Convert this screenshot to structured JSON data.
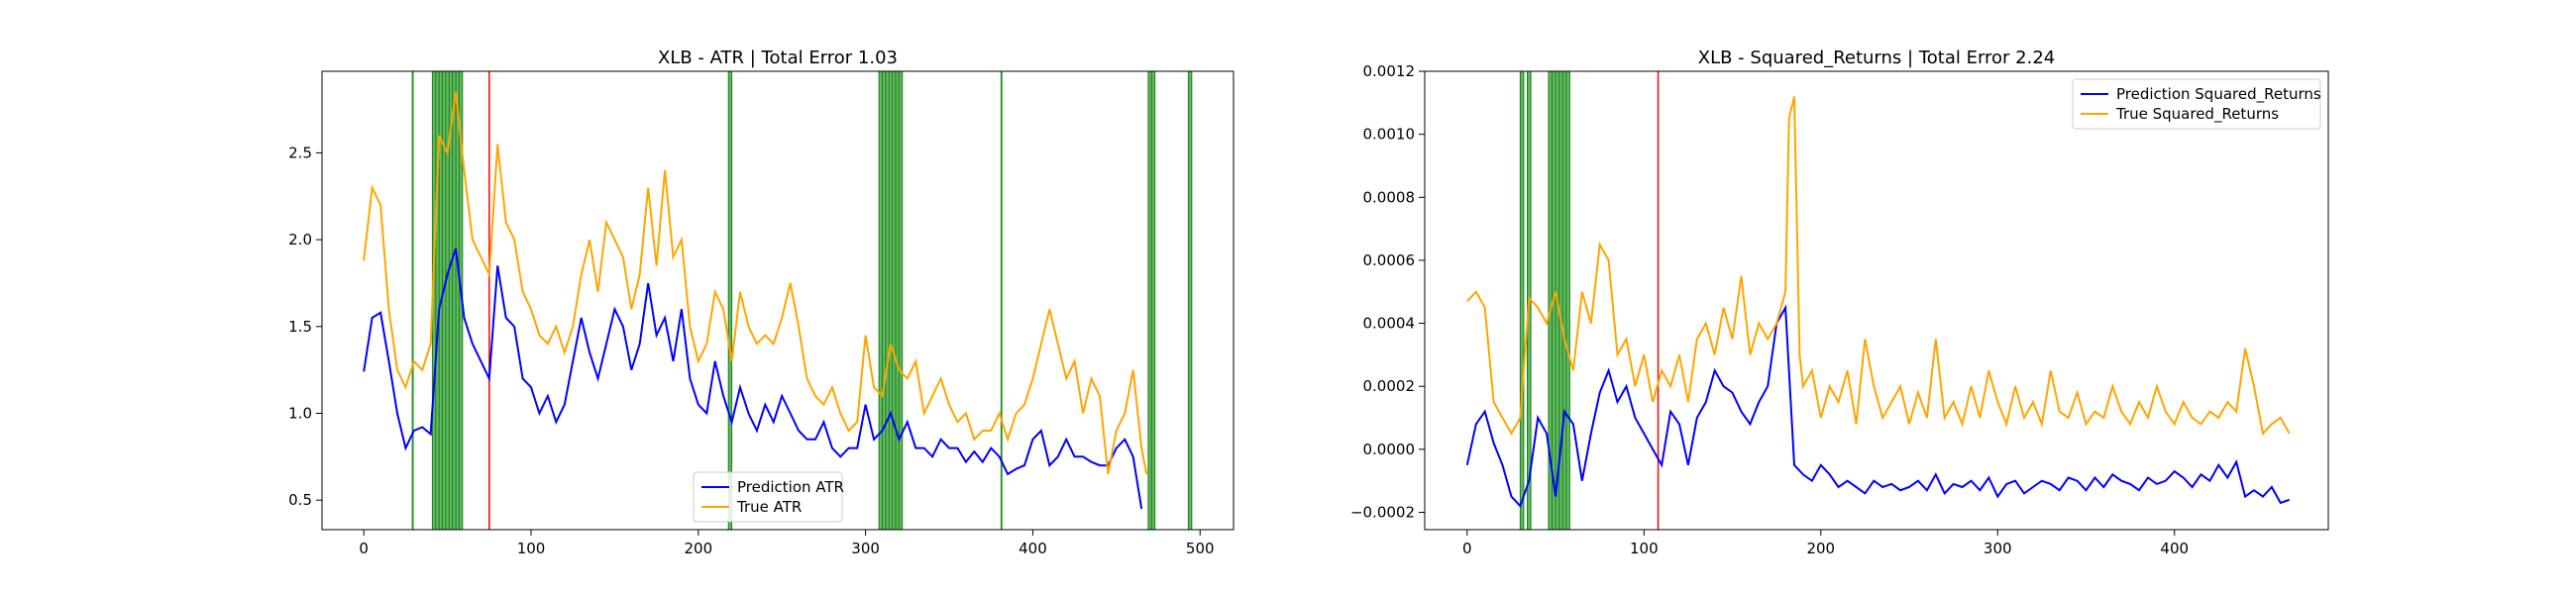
{
  "chart_data": [
    {
      "type": "line",
      "title": "XLB - ATR | Total Error 1.03",
      "xlim": [
        -25,
        520
      ],
      "ylim": [
        0.33,
        2.97
      ],
      "xticks": [
        0,
        100,
        200,
        300,
        400,
        500
      ],
      "yticks": [
        0.5,
        1.0,
        1.5,
        2.0,
        2.5
      ],
      "ytick_format": "1",
      "legend_position": "lower-center",
      "green_regions": [
        [
          29,
          30
        ],
        [
          41,
          59
        ],
        [
          218,
          220
        ],
        [
          308,
          322
        ],
        [
          381,
          382
        ],
        [
          469,
          473
        ],
        [
          493,
          495
        ]
      ],
      "red_lines": [
        75
      ],
      "series": [
        {
          "name": "Prediction ATR",
          "color": "#0000ff",
          "x": [
            0,
            5,
            10,
            15,
            20,
            25,
            30,
            35,
            40,
            45,
            50,
            55,
            60,
            65,
            70,
            75,
            80,
            85,
            90,
            95,
            100,
            105,
            110,
            115,
            120,
            125,
            130,
            135,
            140,
            145,
            150,
            155,
            160,
            165,
            170,
            175,
            180,
            185,
            190,
            195,
            200,
            205,
            210,
            215,
            220,
            225,
            230,
            235,
            240,
            245,
            250,
            255,
            260,
            265,
            270,
            275,
            280,
            285,
            290,
            295,
            300,
            305,
            310,
            315,
            320,
            325,
            330,
            335,
            340,
            345,
            350,
            355,
            360,
            365,
            370,
            375,
            380,
            385,
            390,
            395,
            400,
            405,
            410,
            415,
            420,
            425,
            430,
            435,
            440,
            445,
            450,
            455,
            460,
            465
          ],
          "values": [
            1.24,
            1.55,
            1.58,
            1.3,
            1.0,
            0.8,
            0.9,
            0.92,
            0.88,
            1.6,
            1.8,
            1.95,
            1.55,
            1.4,
            1.3,
            1.2,
            1.85,
            1.55,
            1.5,
            1.2,
            1.15,
            1.0,
            1.1,
            0.95,
            1.05,
            1.3,
            1.55,
            1.35,
            1.2,
            1.4,
            1.6,
            1.5,
            1.25,
            1.4,
            1.75,
            1.45,
            1.55,
            1.3,
            1.6,
            1.2,
            1.05,
            1.0,
            1.3,
            1.1,
            0.95,
            1.15,
            1.0,
            0.9,
            1.05,
            0.95,
            1.1,
            1.0,
            0.9,
            0.85,
            0.85,
            0.95,
            0.8,
            0.75,
            0.8,
            0.8,
            1.05,
            0.85,
            0.9,
            1.0,
            0.85,
            0.95,
            0.8,
            0.8,
            0.75,
            0.85,
            0.8,
            0.8,
            0.72,
            0.78,
            0.72,
            0.8,
            0.75,
            0.65,
            0.68,
            0.7,
            0.85,
            0.9,
            0.7,
            0.75,
            0.85,
            0.75,
            0.75,
            0.72,
            0.7,
            0.7,
            0.8,
            0.85,
            0.75,
            0.45
          ]
        },
        {
          "name": "True ATR",
          "color": "#ffa500",
          "x": [
            0,
            5,
            10,
            15,
            20,
            25,
            30,
            35,
            40,
            45,
            50,
            55,
            60,
            65,
            70,
            75,
            80,
            85,
            90,
            95,
            100,
            105,
            110,
            115,
            120,
            125,
            130,
            135,
            140,
            145,
            150,
            155,
            160,
            165,
            170,
            175,
            180,
            185,
            190,
            195,
            200,
            205,
            210,
            215,
            220,
            225,
            230,
            235,
            240,
            245,
            250,
            255,
            260,
            265,
            270,
            275,
            280,
            285,
            290,
            295,
            300,
            305,
            310,
            315,
            320,
            325,
            330,
            335,
            340,
            345,
            350,
            355,
            360,
            365,
            370,
            375,
            380,
            385,
            390,
            395,
            400,
            405,
            410,
            415,
            420,
            425,
            430,
            435,
            440,
            445,
            450,
            455,
            460,
            465,
            468
          ],
          "values": [
            1.88,
            2.3,
            2.2,
            1.6,
            1.25,
            1.15,
            1.3,
            1.25,
            1.4,
            2.6,
            2.5,
            2.85,
            2.4,
            2.0,
            1.9,
            1.8,
            2.55,
            2.1,
            2.0,
            1.7,
            1.6,
            1.45,
            1.4,
            1.5,
            1.35,
            1.5,
            1.8,
            2.0,
            1.7,
            2.1,
            2.0,
            1.9,
            1.6,
            1.8,
            2.3,
            1.85,
            2.4,
            1.9,
            2.0,
            1.5,
            1.3,
            1.4,
            1.7,
            1.6,
            1.3,
            1.7,
            1.5,
            1.4,
            1.45,
            1.4,
            1.55,
            1.75,
            1.5,
            1.2,
            1.1,
            1.05,
            1.15,
            1.0,
            0.9,
            0.95,
            1.45,
            1.15,
            1.1,
            1.4,
            1.25,
            1.2,
            1.3,
            1.0,
            1.1,
            1.2,
            1.05,
            0.95,
            1.0,
            0.85,
            0.9,
            0.9,
            1.0,
            0.85,
            1.0,
            1.05,
            1.2,
            1.4,
            1.6,
            1.4,
            1.2,
            1.3,
            1.0,
            1.2,
            1.1,
            0.65,
            0.9,
            1.0,
            1.25,
            0.8,
            0.65
          ]
        }
      ]
    },
    {
      "type": "line",
      "title": "XLB - Squared_Returns | Total Error 2.24",
      "xlim": [
        -24,
        487
      ],
      "ylim": [
        -0.000255,
        0.0012
      ],
      "xticks": [
        0,
        100,
        200,
        300,
        400
      ],
      "yticks": [
        -0.0002,
        0.0,
        0.0002,
        0.0004,
        0.0006,
        0.0008,
        0.001,
        0.0012
      ],
      "ytick_format": "4",
      "legend_position": "upper-right",
      "green_regions": [
        [
          30,
          32
        ],
        [
          34,
          36
        ],
        [
          46,
          58
        ]
      ],
      "red_lines": [
        108
      ],
      "series": [
        {
          "name": "Prediction Squared_Returns",
          "color": "#0000ff",
          "x": [
            0,
            5,
            10,
            15,
            20,
            25,
            30,
            35,
            40,
            45,
            50,
            55,
            60,
            65,
            70,
            75,
            80,
            85,
            90,
            95,
            100,
            105,
            110,
            115,
            120,
            125,
            130,
            135,
            140,
            145,
            150,
            155,
            160,
            165,
            170,
            175,
            180,
            185,
            190,
            195,
            200,
            205,
            210,
            215,
            220,
            225,
            230,
            235,
            240,
            245,
            250,
            255,
            260,
            265,
            270,
            275,
            280,
            285,
            290,
            295,
            300,
            305,
            310,
            315,
            320,
            325,
            330,
            335,
            340,
            345,
            350,
            355,
            360,
            365,
            370,
            375,
            380,
            385,
            390,
            395,
            400,
            405,
            410,
            415,
            420,
            425,
            430,
            435,
            440,
            445,
            450,
            455,
            460,
            465
          ],
          "values": [
            -5e-05,
            8e-05,
            0.00012,
            2e-05,
            -5e-05,
            -0.00015,
            -0.00018,
            -0.0001,
            0.0001,
            5e-05,
            -0.00015,
            0.00012,
            8e-05,
            -0.0001,
            5e-05,
            0.00018,
            0.00025,
            0.00015,
            0.0002,
            0.0001,
            5e-05,
            0.0,
            -5e-05,
            0.00012,
            8e-05,
            -5e-05,
            0.0001,
            0.00015,
            0.00025,
            0.0002,
            0.00018,
            0.00012,
            8e-05,
            0.00015,
            0.0002,
            0.0004,
            0.00045,
            -5e-05,
            -8e-05,
            -0.0001,
            -5e-05,
            -8e-05,
            -0.00012,
            -0.0001,
            -0.00012,
            -0.00014,
            -0.0001,
            -0.00012,
            -0.00011,
            -0.00013,
            -0.00012,
            -0.0001,
            -0.00013,
            -8e-05,
            -0.00014,
            -0.00011,
            -0.00012,
            -0.0001,
            -0.00013,
            -9e-05,
            -0.00015,
            -0.00011,
            -0.0001,
            -0.00014,
            -0.00012,
            -0.0001,
            -0.00011,
            -0.00013,
            -9e-05,
            -0.0001,
            -0.00013,
            -9e-05,
            -0.00012,
            -8e-05,
            -0.0001,
            -0.00011,
            -0.00013,
            -9e-05,
            -0.00011,
            -0.0001,
            -7e-05,
            -9e-05,
            -0.00012,
            -8e-05,
            -0.0001,
            -5e-05,
            -9e-05,
            -4e-05,
            -0.00015,
            -0.00013,
            -0.00015,
            -0.00012,
            -0.00017,
            -0.00016
          ]
        },
        {
          "name": "True Squared_Returns",
          "color": "#ffa500",
          "x": [
            0,
            5,
            10,
            15,
            20,
            25,
            30,
            35,
            40,
            45,
            50,
            55,
            60,
            65,
            70,
            75,
            80,
            85,
            90,
            95,
            100,
            105,
            110,
            115,
            120,
            125,
            130,
            135,
            140,
            145,
            150,
            155,
            160,
            165,
            170,
            175,
            180,
            182,
            185,
            188,
            190,
            195,
            200,
            205,
            210,
            215,
            220,
            225,
            230,
            235,
            240,
            245,
            250,
            255,
            260,
            265,
            270,
            275,
            280,
            285,
            290,
            295,
            300,
            305,
            310,
            315,
            320,
            325,
            330,
            335,
            340,
            345,
            350,
            355,
            360,
            365,
            370,
            375,
            380,
            385,
            390,
            395,
            400,
            405,
            410,
            415,
            420,
            425,
            430,
            435,
            440,
            445,
            450,
            455,
            460,
            465
          ],
          "values": [
            0.00047,
            0.0005,
            0.00045,
            0.00015,
            0.0001,
            5e-05,
            0.0001,
            0.00048,
            0.00045,
            0.0004,
            0.0005,
            0.00035,
            0.00025,
            0.0005,
            0.0004,
            0.00065,
            0.0006,
            0.0003,
            0.00035,
            0.0002,
            0.0003,
            0.00015,
            0.00025,
            0.0002,
            0.0003,
            0.00015,
            0.00035,
            0.0004,
            0.0003,
            0.00045,
            0.00035,
            0.00055,
            0.0003,
            0.0004,
            0.00035,
            0.0004,
            0.0005,
            0.00105,
            0.00112,
            0.0003,
            0.0002,
            0.00025,
            0.0001,
            0.0002,
            0.00015,
            0.00025,
            8e-05,
            0.00035,
            0.0002,
            0.0001,
            0.00015,
            0.0002,
            8e-05,
            0.00018,
            0.0001,
            0.00035,
            0.0001,
            0.00015,
            8e-05,
            0.0002,
            0.0001,
            0.00025,
            0.00015,
            8e-05,
            0.0002,
            0.0001,
            0.00015,
            8e-05,
            0.00025,
            0.00012,
            0.0001,
            0.00018,
            8e-05,
            0.00012,
            0.0001,
            0.0002,
            0.00012,
            8e-05,
            0.00015,
            0.0001,
            0.0002,
            0.00012,
            8e-05,
            0.00015,
            0.0001,
            8e-05,
            0.00012,
            0.0001,
            0.00015,
            0.00012,
            0.00032,
            0.0002,
            5e-05,
            8e-05,
            0.0001,
            5e-05
          ]
        }
      ]
    }
  ]
}
